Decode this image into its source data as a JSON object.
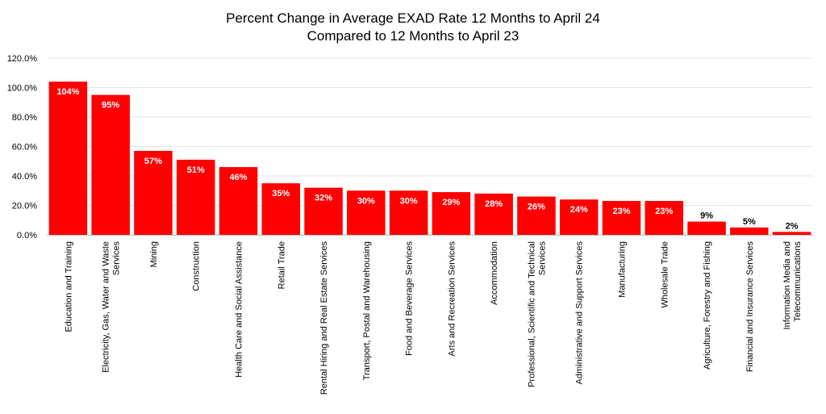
{
  "chart_data": {
    "type": "bar",
    "title": [
      "Percent Change in Average EXAD Rate 12 Months to April 24",
      "Compared to 12 Months to April 23"
    ],
    "xlabel": "",
    "ylabel": "",
    "ylim": [
      0,
      120
    ],
    "yticks": [
      "0.0%",
      "20.0%",
      "40.0%",
      "60.0%",
      "80.0%",
      "100.0%",
      "120.0%"
    ],
    "grid": true,
    "legend": "none",
    "bar_color": "#ff0000",
    "categories": [
      [
        "Education and Training"
      ],
      [
        "Electricity, Gas, Water and Waste",
        "Services"
      ],
      [
        "Mining"
      ],
      [
        "Construction"
      ],
      [
        "Health Care and Social Assistance"
      ],
      [
        "Retail Trade"
      ],
      [
        "Rental Hiring and Real Estate Services"
      ],
      [
        "Transport, Postal and Warehousing"
      ],
      [
        "Food and Beverage Services"
      ],
      [
        "Arts and Recreation Services"
      ],
      [
        "Accommodation"
      ],
      [
        "Professional, Scientific and Technical",
        "Services"
      ],
      [
        "Administrative and Support Services"
      ],
      [
        "Manufacturing"
      ],
      [
        "Wholesale Trade"
      ],
      [
        "Agriculture, Forestry and Fishing"
      ],
      [
        "Financial and Insurance Services"
      ],
      [
        "Information Media and",
        "Telecommunications"
      ]
    ],
    "values": [
      104,
      95,
      57,
      51,
      46,
      35,
      32,
      30,
      30,
      29,
      28,
      26,
      24,
      23,
      23,
      9,
      5,
      2
    ],
    "data_labels": [
      "104%",
      "95%",
      "57%",
      "51%",
      "46%",
      "35%",
      "32%",
      "30%",
      "30%",
      "29%",
      "28%",
      "26%",
      "24%",
      "23%",
      "23%",
      "9%",
      "5%",
      "2%"
    ]
  }
}
